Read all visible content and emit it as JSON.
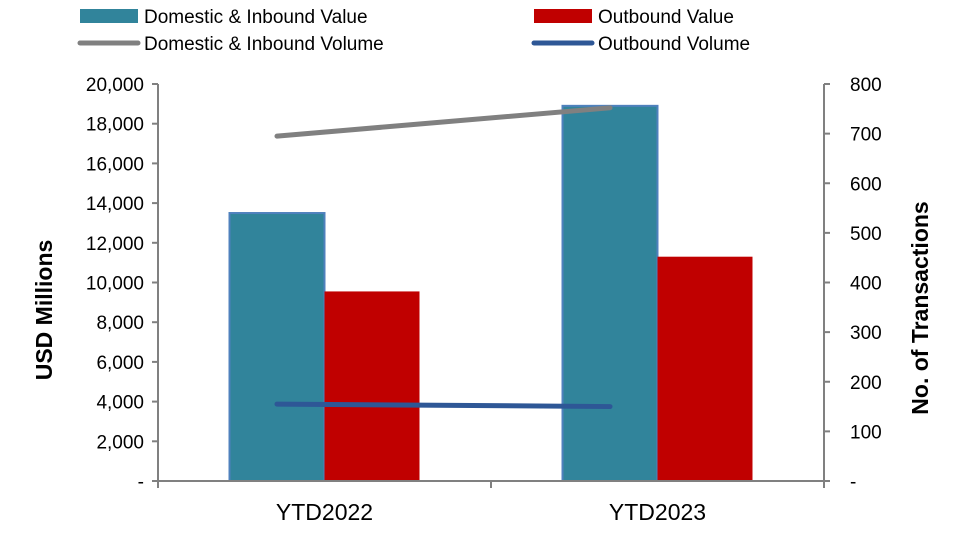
{
  "chart_data": {
    "type": "bar",
    "categories": [
      "YTD2022",
      "YTD2023"
    ],
    "series": [
      {
        "name": "Domestic & Inbound Value",
        "kind": "bar",
        "axis": "left",
        "color": "#31849b",
        "values": [
          13500,
          18900
        ]
      },
      {
        "name": "Outbound Value",
        "kind": "bar",
        "axis": "left",
        "color": "#c00000",
        "values": [
          9550,
          11300
        ]
      },
      {
        "name": "Domestic & Inbound Volume",
        "kind": "line",
        "axis": "right",
        "color": "#808080",
        "values": [
          695,
          752
        ]
      },
      {
        "name": "Outbound Volume",
        "kind": "line",
        "axis": "right",
        "color": "#2e5796",
        "values": [
          155,
          150
        ]
      }
    ],
    "ylabel": "USD Millions",
    "y2label": "No. of Transactions",
    "ylim": [
      0,
      20000
    ],
    "y2lim": [
      0,
      800
    ],
    "yticks": [
      "-",
      "2,000",
      "4,000",
      "6,000",
      "8,000",
      "10,000",
      "12,000",
      "14,000",
      "16,000",
      "18,000",
      "20,000"
    ],
    "y2ticks": [
      "-",
      "100",
      "200",
      "300",
      "400",
      "500",
      "600",
      "700",
      "800"
    ],
    "legend_position": "top",
    "grid": false
  }
}
